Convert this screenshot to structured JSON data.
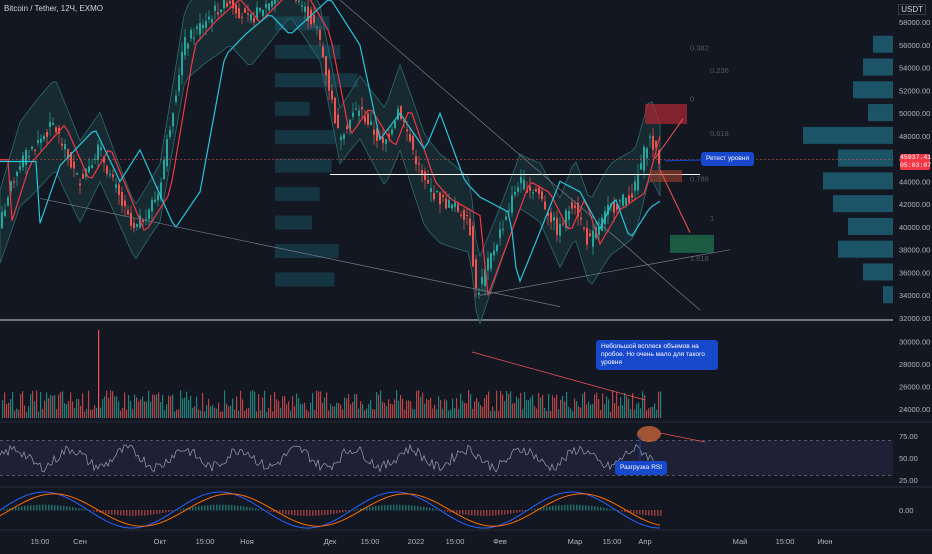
{
  "header": {
    "title": "Bitcoin / Tether, 12Ч, EXMO",
    "currency": "USDT"
  },
  "annotations": {
    "retest": "Ретест уровня",
    "volume_note": "Небольшой всплеск объемов на пробое. Но очень мало для такого уровня",
    "rsi_note": "Разгрузка RSI"
  },
  "last_price": {
    "value": "45937.41",
    "countdown": "05:03:07",
    "color": "#f23645"
  },
  "fib_labels": [
    "0.382",
    "0.236",
    "0",
    "0.618",
    "0.786",
    "1",
    "1.618"
  ],
  "colors": {
    "up": "#26a69a",
    "down": "#ef5350",
    "ema_fast": "#f23645",
    "ema_slow": "#26c6da",
    "bands": "#2e6a6e",
    "profile": "#1e6c80",
    "bg": "#131722",
    "rsi_band": "#7e57c2"
  },
  "chart_data": [
    {
      "type": "candlestick",
      "title": "Bitcoin / Tether, 12Ч, EXMO",
      "y_axis_ticks": [
        58000,
        56000,
        54000,
        52000,
        50000,
        48000,
        46000,
        44000,
        42000,
        40000,
        38000,
        36000,
        34000,
        32000
      ],
      "x_axis_ticks": [
        "15:00",
        "Сен",
        "Окт",
        "15:00",
        "Ноя",
        "Дек",
        "15:00",
        "2022",
        "15:00",
        "Фев",
        "Мар",
        "15:00",
        "Апр",
        "Май",
        "15:00",
        "Июн"
      ],
      "series_close_approx": [
        {
          "x": "Сен",
          "y": 47000
        },
        {
          "x": "Сен",
          "y": 50000
        },
        {
          "x": "Окт",
          "y": 41000
        },
        {
          "x": "Окт",
          "y": 55000
        },
        {
          "x": "Ноя",
          "y": 61000
        },
        {
          "x": "Ноя",
          "y": 57000
        },
        {
          "x": "Дек",
          "y": 49000
        },
        {
          "x": "Дек",
          "y": 47000
        },
        {
          "x": "2022",
          "y": 46000
        },
        {
          "x": "2022",
          "y": 41000
        },
        {
          "x": "Фев",
          "y": 36000
        },
        {
          "x": "Фев",
          "y": 43000
        },
        {
          "x": "Мар",
          "y": 38000
        },
        {
          "x": "Мар",
          "y": 44000
        },
        {
          "x": "Апр",
          "y": 45937.41
        }
      ],
      "projection": {
        "up_target": 50000,
        "down_target": 39000
      },
      "level": 44500
    },
    {
      "type": "bar",
      "title": "Volume",
      "y_axis_ticks": [
        30000,
        28000,
        26000,
        24000
      ]
    },
    {
      "type": "line",
      "title": "RSI",
      "y_axis_ticks": [
        75.0,
        50.0,
        25.0
      ]
    },
    {
      "type": "line",
      "title": "MACD",
      "y_axis_ticks": [
        0.0
      ]
    }
  ]
}
